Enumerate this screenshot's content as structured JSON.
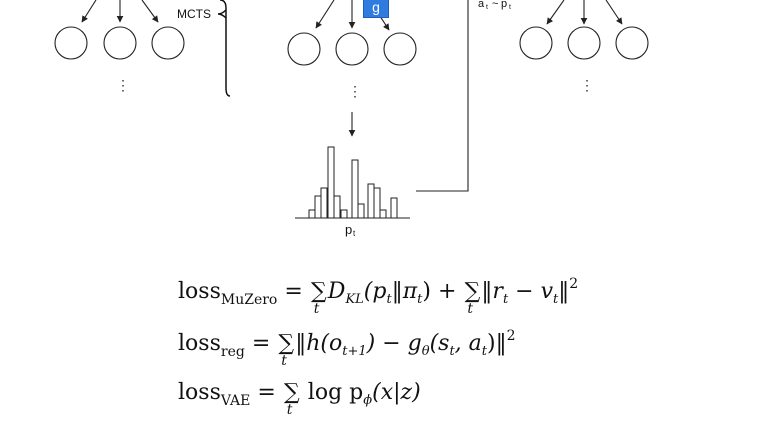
{
  "diagram": {
    "mcts_label": "MCTS",
    "action_label": "a",
    "action_sub": "t",
    "action_rel": "~",
    "policy_label": "p",
    "policy_sub": "t",
    "g_label": "g",
    "ellipsis": "⋮"
  },
  "equations": [
    {
      "lhs": "loss",
      "lhs_sub": "MuZero",
      "eq": " = ",
      "sum_index": "t",
      "term1": "D",
      "term1_sub": "KL",
      "term1_args": "(p",
      "term1_args_sub": "t",
      "term1_mid": "‖π",
      "term1_mid_sub": "t",
      "term1_end": ") + ",
      "term2_start": "‖r",
      "term2_start_sub": "t",
      "term2_mid": " − v",
      "term2_mid_sub": "t",
      "term2_end": "‖",
      "term2_exp": "2"
    },
    {
      "lhs": "loss",
      "lhs_sub": "reg",
      "eq": " = ",
      "sum_index": "t",
      "body_start": "‖h(o",
      "body_sub1": "t+1",
      "body_mid": ") − g",
      "body_sub2": "θ",
      "body_mid2": "(s",
      "body_sub3": "t",
      "body_mid3": ", a",
      "body_sub4": "t",
      "body_end": ")‖",
      "body_exp": "2"
    },
    {
      "lhs": "loss",
      "lhs_sub": "VAE",
      "eq": " = ",
      "sum_index": "t",
      "body_start": " log p",
      "body_sub": "ϕ",
      "body_end": "(x|z)"
    }
  ]
}
